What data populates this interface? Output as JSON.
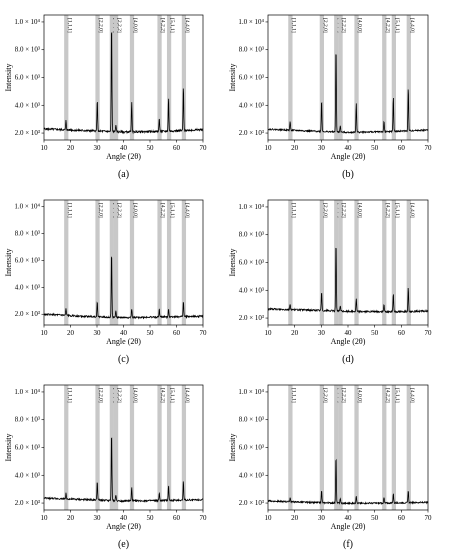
{
  "chart_data": [
    {
      "panel": "(a)",
      "type": "line",
      "xlabel": "Angle (2θ)",
      "ylabel": "Intensity",
      "xlim": [
        10,
        70
      ],
      "ylim": [
        150,
        1050
      ],
      "x_ticks": [
        10,
        20,
        30,
        40,
        50,
        60,
        70
      ],
      "y_ticks": [
        {
          "v": 200,
          "label": "2.0 × 10³"
        },
        {
          "v": 400,
          "label": "4.0 × 10³"
        },
        {
          "v": 600,
          "label": "6.0 × 10³"
        },
        {
          "v": 800,
          "label": "8.0 × 10³"
        },
        {
          "v": 1000,
          "label": "1.0 × 10⁴"
        }
      ],
      "baseline": [
        [
          10,
          230
        ],
        [
          25,
          218
        ],
        [
          40,
          208
        ],
        [
          55,
          212
        ],
        [
          70,
          225
        ]
      ],
      "noise": 7,
      "bands": [
        {
          "label": "[1,1,1]",
          "center": 18.4
        },
        {
          "label": "[2,2,0]",
          "center": 30.2
        },
        {
          "label": "[3,1,1]",
          "center": 35.6
        },
        {
          "label": "[2,2,2]",
          "center": 37.2
        },
        {
          "label": "[4,0,0]",
          "center": 43.2
        },
        {
          "label": "[4,2,2]",
          "center": 53.6
        },
        {
          "label": "[5,1,1]",
          "center": 57.2
        },
        {
          "label": "[4,4,0]",
          "center": 62.8
        }
      ],
      "peaks": [
        {
          "x": 18.3,
          "y": 290
        },
        {
          "x": 30.1,
          "y": 440
        },
        {
          "x": 35.5,
          "y": 1000
        },
        {
          "x": 37.1,
          "y": 260
        },
        {
          "x": 43.1,
          "y": 420
        },
        {
          "x": 53.5,
          "y": 310
        },
        {
          "x": 57.0,
          "y": 455
        },
        {
          "x": 62.6,
          "y": 535
        }
      ]
    },
    {
      "panel": "(b)",
      "type": "line",
      "xlabel": "Angle (2θ)",
      "ylabel": "Intensity",
      "xlim": [
        10,
        70
      ],
      "ylim": [
        150,
        1050
      ],
      "x_ticks": [
        10,
        20,
        30,
        40,
        50,
        60,
        70
      ],
      "y_ticks": [
        {
          "v": 200,
          "label": "2.0 × 10³"
        },
        {
          "v": 400,
          "label": "4.0 × 10³"
        },
        {
          "v": 600,
          "label": "6.0 × 10³"
        },
        {
          "v": 800,
          "label": "8.0 × 10³"
        },
        {
          "v": 1000,
          "label": "1.0 × 10⁴"
        }
      ],
      "baseline": [
        [
          10,
          228
        ],
        [
          25,
          215
        ],
        [
          40,
          205
        ],
        [
          55,
          210
        ],
        [
          70,
          222
        ]
      ],
      "noise": 5,
      "bands": [
        {
          "label": "[1,1,1]",
          "center": 18.4
        },
        {
          "label": "[2,2,0]",
          "center": 30.2
        },
        {
          "label": "[3,1,1]",
          "center": 35.6
        },
        {
          "label": "[2,2,2]",
          "center": 37.2
        },
        {
          "label": "[4,0,0]",
          "center": 43.2
        },
        {
          "label": "[4,2,2]",
          "center": 53.6
        },
        {
          "label": "[5,1,1]",
          "center": 57.2
        },
        {
          "label": "[4,4,0]",
          "center": 62.8
        }
      ],
      "peaks": [
        {
          "x": 18.3,
          "y": 285
        },
        {
          "x": 30.1,
          "y": 440
        },
        {
          "x": 35.5,
          "y": 830
        },
        {
          "x": 37.1,
          "y": 255
        },
        {
          "x": 43.1,
          "y": 420
        },
        {
          "x": 53.5,
          "y": 290
        },
        {
          "x": 57.0,
          "y": 460
        },
        {
          "x": 62.6,
          "y": 530
        }
      ]
    },
    {
      "panel": "(c)",
      "type": "line",
      "xlabel": "Angle (2θ)",
      "ylabel": "Intensity",
      "xlim": [
        10,
        70
      ],
      "ylim": [
        120,
        1050
      ],
      "x_ticks": [
        10,
        20,
        30,
        40,
        50,
        60,
        70
      ],
      "y_ticks": [
        {
          "v": 200,
          "label": "2.0 × 10³"
        },
        {
          "v": 400,
          "label": "4.0 × 10³"
        },
        {
          "v": 600,
          "label": "6.0 × 10³"
        },
        {
          "v": 800,
          "label": "8.0 × 10³"
        },
        {
          "v": 1000,
          "label": "1.0 × 10⁴"
        }
      ],
      "baseline": [
        [
          10,
          200
        ],
        [
          25,
          185
        ],
        [
          40,
          175
        ],
        [
          55,
          180
        ],
        [
          70,
          185
        ]
      ],
      "noise": 6,
      "bands": [
        {
          "label": "[1,1,1]",
          "center": 18.4
        },
        {
          "label": "[2,2,0]",
          "center": 30.2
        },
        {
          "label": "[3,1,1]",
          "center": 35.6
        },
        {
          "label": "[2,2,2]",
          "center": 37.2
        },
        {
          "label": "[4,0,0]",
          "center": 43.2
        },
        {
          "label": "[4,2,2]",
          "center": 53.6
        },
        {
          "label": "[5,1,1]",
          "center": 57.2
        },
        {
          "label": "[4,4,0]",
          "center": 62.8
        }
      ],
      "peaks": [
        {
          "x": 18.3,
          "y": 240
        },
        {
          "x": 30.1,
          "y": 300
        },
        {
          "x": 35.5,
          "y": 670
        },
        {
          "x": 37.1,
          "y": 230
        },
        {
          "x": 43.1,
          "y": 240
        },
        {
          "x": 53.5,
          "y": 240
        },
        {
          "x": 57.0,
          "y": 245
        },
        {
          "x": 62.6,
          "y": 300
        }
      ]
    },
    {
      "panel": "(d)",
      "type": "line",
      "xlabel": "Angle (2θ)",
      "ylabel": "Intensity",
      "xlim": [
        10,
        70
      ],
      "ylim": [
        150,
        1050
      ],
      "x_ticks": [
        10,
        20,
        30,
        40,
        50,
        60,
        70
      ],
      "y_ticks": [
        {
          "v": 200,
          "label": "2.0 × 10³"
        },
        {
          "v": 400,
          "label": "4.0 × 10³"
        },
        {
          "v": 600,
          "label": "6.0 × 10³"
        },
        {
          "v": 800,
          "label": "8.0 × 10³"
        },
        {
          "v": 1000,
          "label": "1.0 × 10⁴"
        }
      ],
      "baseline": [
        [
          10,
          265
        ],
        [
          25,
          258
        ],
        [
          40,
          248
        ],
        [
          55,
          245
        ],
        [
          70,
          250
        ]
      ],
      "noise": 6,
      "bands": [
        {
          "label": "[1,1,1]",
          "center": 18.4
        },
        {
          "label": "[2,2,0]",
          "center": 30.2
        },
        {
          "label": "[3,1,1]",
          "center": 35.6
        },
        {
          "label": "[2,2,2]",
          "center": 37.2
        },
        {
          "label": "[4,0,0]",
          "center": 43.2
        },
        {
          "label": "[4,2,2]",
          "center": 53.6
        },
        {
          "label": "[5,1,1]",
          "center": 57.2
        },
        {
          "label": "[4,4,0]",
          "center": 62.8
        }
      ],
      "peaks": [
        {
          "x": 18.3,
          "y": 300
        },
        {
          "x": 30.1,
          "y": 390
        },
        {
          "x": 35.5,
          "y": 760
        },
        {
          "x": 37.1,
          "y": 290
        },
        {
          "x": 43.1,
          "y": 340
        },
        {
          "x": 53.5,
          "y": 300
        },
        {
          "x": 57.0,
          "y": 380
        },
        {
          "x": 62.6,
          "y": 420
        }
      ]
    },
    {
      "panel": "(e)",
      "type": "line",
      "xlabel": "Angle (2θ)",
      "ylabel": "Intensity",
      "xlim": [
        10,
        70
      ],
      "ylim": [
        150,
        1050
      ],
      "x_ticks": [
        10,
        20,
        30,
        40,
        50,
        60,
        70
      ],
      "y_ticks": [
        {
          "v": 200,
          "label": "2.0 × 10³"
        },
        {
          "v": 400,
          "label": "4.0 × 10³"
        },
        {
          "v": 600,
          "label": "6.0 × 10³"
        },
        {
          "v": 800,
          "label": "8.0 × 10³"
        },
        {
          "v": 1000,
          "label": "1.0 × 10⁴"
        }
      ],
      "baseline": [
        [
          10,
          235
        ],
        [
          25,
          225
        ],
        [
          40,
          215
        ],
        [
          55,
          218
        ],
        [
          70,
          225
        ]
      ],
      "noise": 6,
      "bands": [
        {
          "label": "[1,1,1]",
          "center": 18.4
        },
        {
          "label": "[2,2,0]",
          "center": 30.2
        },
        {
          "label": "[3,1,1]",
          "center": 35.6
        },
        {
          "label": "[2,2,2]",
          "center": 37.2
        },
        {
          "label": "[4,0,0]",
          "center": 43.2
        },
        {
          "label": "[4,2,2]",
          "center": 53.6
        },
        {
          "label": "[5,1,1]",
          "center": 57.2
        },
        {
          "label": "[4,4,0]",
          "center": 62.8
        }
      ],
      "peaks": [
        {
          "x": 18.3,
          "y": 270
        },
        {
          "x": 30.1,
          "y": 360
        },
        {
          "x": 35.5,
          "y": 720
        },
        {
          "x": 37.1,
          "y": 260
        },
        {
          "x": 43.1,
          "y": 310
        },
        {
          "x": 53.5,
          "y": 270
        },
        {
          "x": 57.0,
          "y": 330
        },
        {
          "x": 62.6,
          "y": 360
        }
      ]
    },
    {
      "panel": "(f)",
      "type": "line",
      "xlabel": "Angle (2θ)",
      "ylabel": "Intensity",
      "xlim": [
        10,
        70
      ],
      "ylim": [
        150,
        1050
      ],
      "x_ticks": [
        10,
        20,
        30,
        40,
        50,
        60,
        70
      ],
      "y_ticks": [
        {
          "v": 200,
          "label": "2.0 × 10³"
        },
        {
          "v": 400,
          "label": "4.0 × 10³"
        },
        {
          "v": 600,
          "label": "6.0 × 10³"
        },
        {
          "v": 800,
          "label": "8.0 × 10³"
        },
        {
          "v": 1000,
          "label": "1.0 × 10⁴"
        }
      ],
      "baseline": [
        [
          10,
          215
        ],
        [
          25,
          205
        ],
        [
          40,
          198
        ],
        [
          55,
          200
        ],
        [
          70,
          205
        ]
      ],
      "noise": 5,
      "bands": [
        {
          "label": "[1,1,1]",
          "center": 18.4
        },
        {
          "label": "[2,2,0]",
          "center": 30.2
        },
        {
          "label": "[3,1,1]",
          "center": 35.6
        },
        {
          "label": "[2,2,2]",
          "center": 37.2
        },
        {
          "label": "[4,0,0]",
          "center": 43.2
        },
        {
          "label": "[4,2,2]",
          "center": 53.6
        },
        {
          "label": "[5,1,1]",
          "center": 57.2
        },
        {
          "label": "[4,4,0]",
          "center": 62.8
        }
      ],
      "peaks": [
        {
          "x": 18.3,
          "y": 240
        },
        {
          "x": 30.1,
          "y": 290
        },
        {
          "x": 35.5,
          "y": 540
        },
        {
          "x": 37.1,
          "y": 235
        },
        {
          "x": 43.1,
          "y": 255
        },
        {
          "x": 53.5,
          "y": 240
        },
        {
          "x": 57.0,
          "y": 270
        },
        {
          "x": 62.6,
          "y": 290
        }
      ]
    }
  ],
  "colors": {
    "band": "#c8c8c8",
    "line": "#000000"
  }
}
